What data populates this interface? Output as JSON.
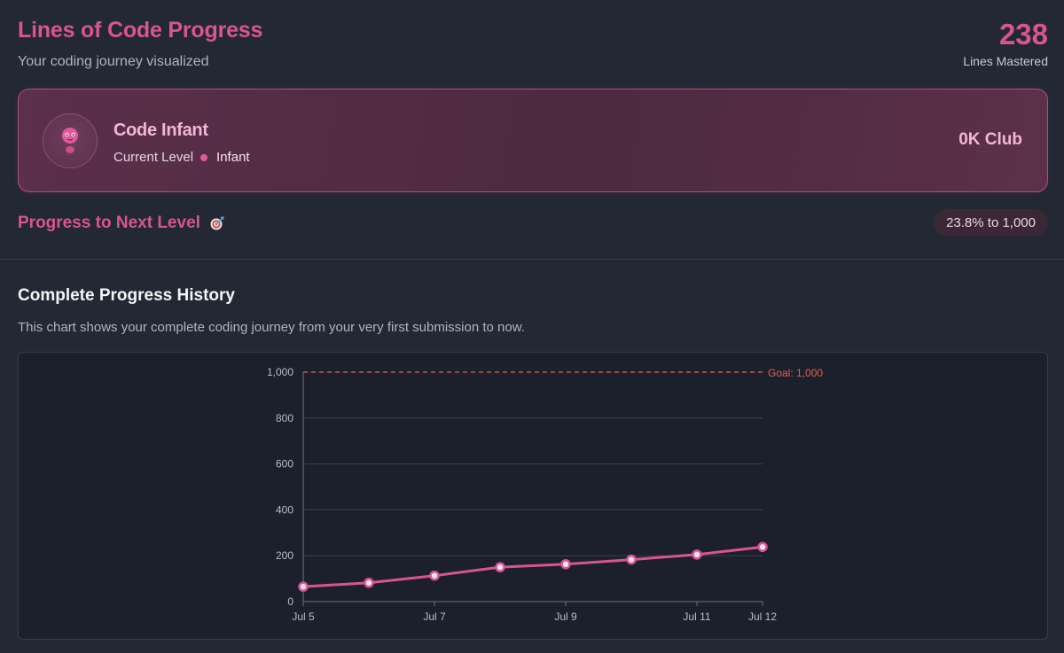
{
  "header": {
    "title": "Lines of Code Progress",
    "subtitle": "Your coding journey visualized",
    "lines_count": "238",
    "lines_label": "Lines Mastered"
  },
  "level_card": {
    "avatar_icon": "baby-face-icon",
    "name": "Code Infant",
    "current_label": "Current Level",
    "current_value": "Infant",
    "club": "0K Club"
  },
  "progress": {
    "label": "Progress to Next Level",
    "icon": "target-icon",
    "pill": "23.8% to 1,000"
  },
  "history": {
    "title": "Complete Progress History",
    "description": "This chart shows your complete coding journey from your very first submission to now."
  },
  "colors": {
    "accent": "#d9558f",
    "line": "#d9558f",
    "goal": "#e1614a",
    "grid": "#3a4050"
  },
  "chart_data": {
    "type": "line",
    "x": [
      "Jul 5",
      "Jul 6",
      "Jul 7",
      "Jul 8",
      "Jul 9",
      "Jul 10",
      "Jul 11",
      "Jul 12"
    ],
    "x_ticks": [
      "Jul 5",
      "Jul 7",
      "Jul 9",
      "Jul 11",
      "Jul 12"
    ],
    "series": [
      {
        "values": [
          65,
          82,
          113,
          150,
          163,
          183,
          205,
          238
        ]
      }
    ],
    "ylim": [
      0,
      1000
    ],
    "y_ticks": [
      0,
      200,
      400,
      600,
      800,
      1000
    ],
    "y_tick_labels": [
      "0",
      "200",
      "400",
      "600",
      "800",
      "1,000"
    ],
    "goal": {
      "value": 1000,
      "label": "Goal: 1,000"
    },
    "grid": true
  }
}
